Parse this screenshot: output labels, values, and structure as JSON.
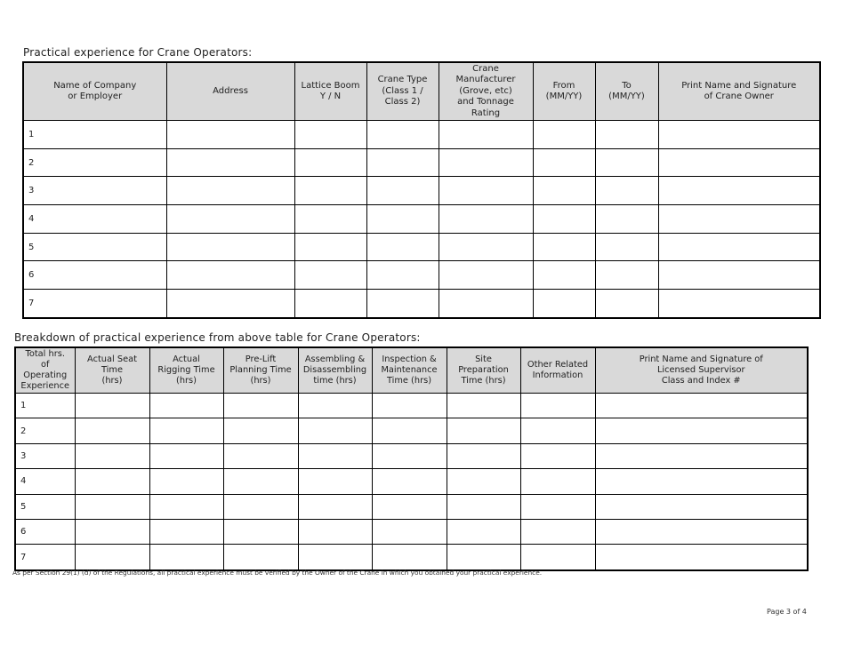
{
  "table1": {
    "title": "Practical experience for Crane Operators:",
    "headers": [
      "Name of Company\nor Employer",
      "Address",
      "Lattice Boom\nY / N",
      "Crane Type\n(Class 1 /\nClass 2)",
      "Crane\nManufacturer\n(Grove, etc)\nand Tonnage\nRating",
      "From\n(MM/YY)",
      "To\n(MM/YY)",
      "Print Name and Signature\nof Crane Owner"
    ],
    "rows": [
      "1",
      "2",
      "3",
      "4",
      "5",
      "6",
      "7"
    ]
  },
  "table2": {
    "title": "Breakdown of practical experience from above table for Crane Operators:",
    "headers": [
      "Total hrs.\nof\nOperating\nExperience",
      "Actual Seat\nTime\n(hrs)",
      "Actual\nRigging Time\n(hrs)",
      "Pre-Lift\nPlanning Time\n(hrs)",
      "Assembling &\nDisassembling\ntime (hrs)",
      "Inspection &\nMaintenance\nTime (hrs)",
      "Site\nPreparation\nTime (hrs)",
      "Other Related\nInformation",
      "Print Name and Signature of\nLicensed Supervisor\nClass and Index #"
    ],
    "rows": [
      "1",
      "2",
      "3",
      "4",
      "5",
      "6",
      "7"
    ]
  },
  "footnote": "As per Section 29(1) (d) of the Regulations, all practical experience must be verified by the Owner of the Crane in which you obtained your practical experience.",
  "page_number": "Page 3 of 4"
}
